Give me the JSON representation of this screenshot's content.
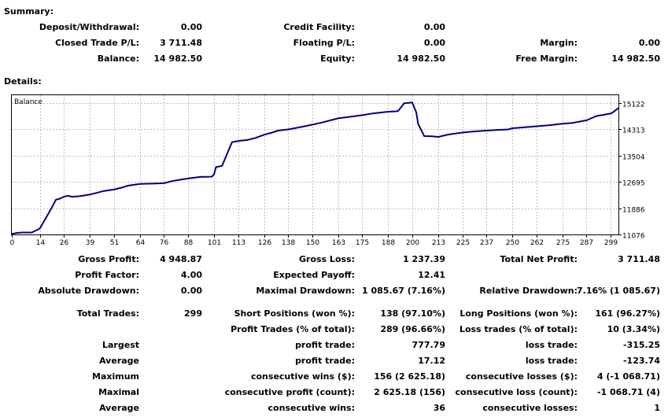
{
  "summary": {
    "title": "Summary:",
    "deposit_withdrawal": {
      "label": "Deposit/Withdrawal:",
      "value": "0.00"
    },
    "credit_facility": {
      "label": "Credit Facility:",
      "value": "0.00"
    },
    "closed_trade_pl": {
      "label": "Closed Trade P/L:",
      "value": "3 711.48"
    },
    "floating_pl": {
      "label": "Floating P/L:",
      "value": "0.00"
    },
    "margin": {
      "label": "Margin:",
      "value": "0.00"
    },
    "balance": {
      "label": "Balance:",
      "value": "14 982.50"
    },
    "equity": {
      "label": "Equity:",
      "value": "14 982.50"
    },
    "free_margin": {
      "label": "Free Margin:",
      "value": "14 982.50"
    }
  },
  "details": {
    "title": "Details:",
    "gross_profit": {
      "label": "Gross Profit:",
      "value": "4 948.87"
    },
    "gross_loss": {
      "label": "Gross Loss:",
      "value": "1 237.39"
    },
    "total_net_profit": {
      "label": "Total Net Profit:",
      "value": "3 711.48"
    },
    "profit_factor": {
      "label": "Profit Factor:",
      "value": "4.00"
    },
    "expected_payoff": {
      "label": "Expected Payoff:",
      "value": "12.41"
    },
    "absolute_drawdown": {
      "label": "Absolute Drawdown:",
      "value": "0.00"
    },
    "maximal_drawdown": {
      "label": "Maximal Drawdown:",
      "value": "1 085.67 (7.16%)"
    },
    "relative_drawdown": {
      "label": "Relative Drawdown:",
      "value": "7.16% (1 085.67)"
    },
    "total_trades": {
      "label": "Total Trades:",
      "value": "299"
    },
    "short_positions": {
      "label": "Short Positions (won %):",
      "value": "138 (97.10%)"
    },
    "long_positions": {
      "label": "Long Positions (won %):",
      "value": "161 (96.27%)"
    },
    "profit_trades": {
      "label": "Profit Trades (% of total):",
      "value": "289 (96.66%)"
    },
    "loss_trades": {
      "label": "Loss trades (% of total):",
      "value": "10 (3.34%)"
    },
    "largest": {
      "label": "Largest",
      "profit_label": "profit trade:",
      "profit_value": "777.79",
      "loss_label": "loss trade:",
      "loss_value": "-315.25"
    },
    "average": {
      "label": "Average",
      "profit_label": "profit trade:",
      "profit_value": "17.12",
      "loss_label": "loss trade:",
      "loss_value": "-123.74"
    },
    "maximum": {
      "label": "Maximum",
      "profit_label": "consecutive wins ($):",
      "profit_value": "156 (2 625.18)",
      "loss_label": "consecutive losses ($):",
      "loss_value": "4 (-1 068.71)"
    },
    "maximal": {
      "label": "Maximal",
      "profit_label": "consecutive profit (count):",
      "profit_value": "2 625.18 (156)",
      "loss_label": "consecutive loss (count):",
      "loss_value": "-1 068.71 (4)"
    },
    "average_consec": {
      "label": "Average",
      "profit_label": "consecutive wins:",
      "profit_value": "36",
      "loss_label": "consecutive losses:",
      "loss_value": "1"
    }
  },
  "chart": {
    "legend": "Balance",
    "line_color": "#000080",
    "grid_color": "#c0c0c0",
    "y_ticks": [
      "15122",
      "14313",
      "13504",
      "12695",
      "11886",
      "11076"
    ],
    "x_ticks": [
      "0",
      "14",
      "26",
      "39",
      "51",
      "64",
      "76",
      "88",
      "101",
      "113",
      "126",
      "138",
      "150",
      "163",
      "175",
      "188",
      "200",
      "213",
      "225",
      "237",
      "250",
      "262",
      "275",
      "287",
      "299"
    ]
  },
  "chart_data": {
    "type": "line",
    "title": "",
    "legend": [
      "Balance"
    ],
    "xlabel": "",
    "ylabel": "",
    "xlim": [
      0,
      303
    ],
    "ylim": [
      11076,
      15365
    ],
    "grid": true,
    "series": [
      {
        "name": "Balance",
        "x": [
          0,
          2,
          5,
          10,
          14,
          16,
          20,
          22,
          24,
          26,
          28,
          30,
          33,
          36,
          39,
          43,
          46,
          51,
          55,
          58,
          64,
          70,
          76,
          80,
          84,
          88,
          94,
          99,
          100,
          101,
          102,
          103,
          105,
          110,
          114,
          118,
          122,
          126,
          130,
          133,
          138,
          142,
          146,
          150,
          155,
          160,
          163,
          168,
          175,
          180,
          188,
          190,
          192,
          193,
          196,
          200,
          202,
          203,
          206,
          210,
          213,
          218,
          225,
          230,
          237,
          242,
          248,
          250,
          255,
          262,
          268,
          275,
          280,
          286,
          287,
          292,
          299,
          300,
          303
        ],
        "y": [
          11096,
          11118,
          11137,
          11137,
          11258,
          11474,
          11907,
          12148,
          12179,
          12238,
          12267,
          12238,
          12248,
          12276,
          12304,
          12367,
          12416,
          12459,
          12520,
          12579,
          12632,
          12641,
          12654,
          12720,
          12760,
          12800,
          12847,
          12855,
          12860,
          12925,
          13151,
          13162,
          13190,
          13920,
          13961,
          13990,
          14053,
          14146,
          14214,
          14275,
          14310,
          14356,
          14405,
          14456,
          14524,
          14604,
          14653,
          14694,
          14750,
          14801,
          14855,
          14861,
          14869,
          14883,
          15119,
          15142,
          14842,
          14479,
          14105,
          14101,
          14081,
          14153,
          14214,
          14244,
          14274,
          14295,
          14310,
          14347,
          14372,
          14408,
          14438,
          14485,
          14510,
          14580,
          14590,
          14724,
          14797,
          14828,
          14970
        ]
      }
    ]
  }
}
